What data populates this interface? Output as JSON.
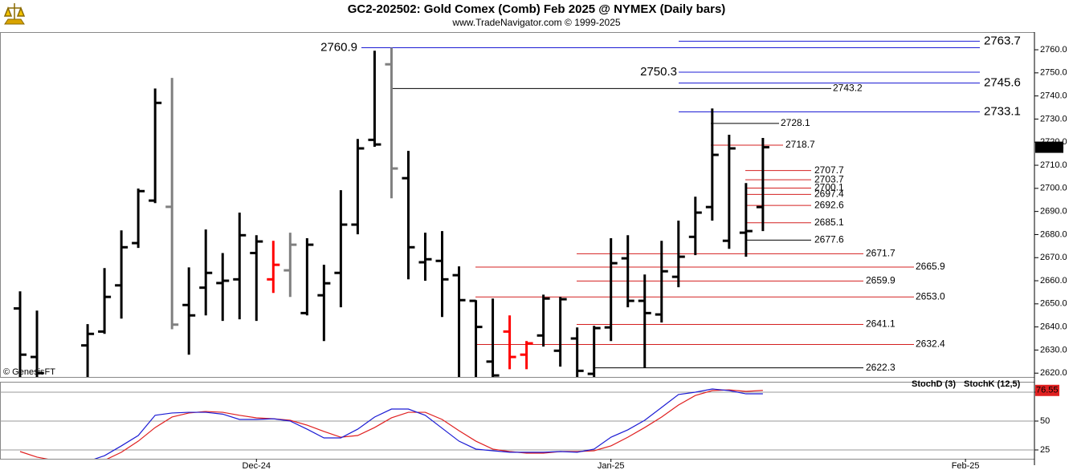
{
  "chart_data": {
    "type": "ohlc",
    "title": "GC2-202502:  Gold Comex (Comb) Feb 2025 @ NYMEX  (Daily bars)",
    "subtitle": "www.TradeNavigator.com © 1999-2025",
    "annotation": "© GenesisFT",
    "categories": [
      null,
      null,
      null,
      null,
      null,
      null,
      null,
      null,
      null,
      null,
      null,
      null,
      null,
      null,
      "Dec-24",
      null,
      null,
      null,
      null,
      null,
      null,
      null,
      null,
      null,
      null,
      null,
      null,
      null,
      null,
      null,
      null,
      null,
      null,
      null,
      null,
      "Jan-25",
      null,
      null,
      null,
      null,
      null,
      null,
      null,
      null,
      null,
      null,
      null,
      null,
      null,
      null,
      null,
      null,
      null,
      null,
      null,
      null,
      "Feb-25",
      null,
      null,
      null
    ],
    "open": [
      2648,
      2627,
      null,
      null,
      2632,
      2638,
      2658,
      2676.3,
      2694.7,
      2692,
      2649.5,
      2657,
      2659,
      2660.6,
      2672,
      2660.6,
      2664.5,
      2646,
      2653.7,
      2663.4,
      2684.3,
      2721,
      2753.7,
      2704.4,
      2668,
      2668.6,
      2662.4,
      2651.3,
      2625,
      2638,
      2628,
      2636.3,
      2629.7,
      2635,
      2619.7,
      2639.8,
      2669.7,
      2651.3,
      2645.4,
      2661.7,
      2679,
      2691.9,
      2677.3,
      2680.8,
      2691.9,
      null,
      null,
      null,
      null,
      null,
      null,
      null,
      null,
      null,
      null,
      null,
      null,
      null,
      null,
      null
    ],
    "high": [
      2655.4,
      2647.1,
      null,
      null,
      2641.2,
      2665.5,
      2681.8,
      2699.9,
      2743.2,
      2747.8,
      2665.8,
      2682.2,
      2672,
      2689.5,
      2679.7,
      2677.3,
      2680.8,
      2678.4,
      2666.9,
      2699.2,
      2721.4,
      2759.6,
      2760.9,
      2716.2,
      2680.8,
      2681.5,
      2666.2,
      2651.6,
      2652.3,
      2645,
      2633.9,
      2654,
      2653,
      2639.8,
      2640.5,
      2678.4,
      2679.7,
      2662.7,
      2677.3,
      2686,
      2696.4,
      2734.6,
      2723.2,
      2702.3,
      2721.8,
      null,
      null,
      null,
      null,
      null,
      null,
      null,
      null,
      null,
      null,
      null,
      null,
      null,
      null,
      null
    ],
    "low": [
      2610,
      2612,
      null,
      null,
      2614,
      2637,
      2643.6,
      2674.2,
      2693.6,
      2639,
      2628,
      2645,
      2642.6,
      2643.3,
      2642.6,
      2654.7,
      2653,
      2645,
      2633.9,
      2648.5,
      2680.1,
      2718,
      2695.7,
      2660.6,
      2660,
      2644.3,
      2615,
      2615,
      2615,
      2621.7,
      2621.7,
      2631.5,
      2622.8,
      2615,
      2615,
      2633.9,
      2648.5,
      2622.4,
      2641.9,
      2657.2,
      2671.1,
      2686,
      2673.8,
      2670.4,
      2681.5,
      null,
      null,
      null,
      null,
      null,
      null,
      null,
      null,
      null,
      null,
      null,
      null,
      null,
      null,
      null
    ],
    "close": [
      2628,
      2620,
      null,
      null,
      2637,
      2653,
      2674.5,
      2698.8,
      2737,
      2641,
      2645,
      2663.4,
      2660,
      2679.7,
      2677,
      2666.9,
      2675.6,
      2675.6,
      2658.9,
      2684.3,
      2717.3,
      2719,
      2708.6,
      2674.5,
      2669.3,
      2660.6,
      2651.6,
      2640,
      2619,
      2627,
      2632.9,
      2652.3,
      2652,
      2621,
      2639.5,
      2667.6,
      2651.3,
      2646,
      2664.1,
      2670.4,
      2689.5,
      2714.5,
      2717.3,
      2681.5,
      2717.8,
      null,
      null,
      null,
      null,
      null,
      null,
      null,
      null,
      null,
      null,
      null,
      null,
      null,
      null,
      null
    ],
    "bar_colors": [
      "#000000",
      "#000000",
      "#000000",
      "#000000",
      "#000000",
      "#000000",
      "#000000",
      "#000000",
      "#000000",
      "#808080",
      "#000000",
      "#000000",
      "#000000",
      "#000000",
      "#000000",
      "#ff0000",
      "#808080",
      "#000000",
      "#000000",
      "#000000",
      "#000000",
      "#000000",
      "#808080",
      "#000000",
      "#000000",
      "#000000",
      "#000000",
      "#000000",
      "#000000",
      "#ff0000",
      "#ff0000",
      "#000000",
      "#000000",
      "#000000",
      "#000000",
      "#000000",
      "#000000",
      "#000000",
      "#000000",
      "#000000",
      "#000000",
      "#000000",
      "#000000",
      "#000000",
      "#000000",
      null,
      null,
      null,
      null,
      null,
      null,
      null,
      null,
      null,
      null,
      null,
      null,
      null,
      null,
      null
    ],
    "ylim": [
      2618,
      2768
    ],
    "yticks": [
      {
        "value": 2620,
        "label": "2620.0"
      },
      {
        "value": 2630,
        "label": "2630.0"
      },
      {
        "value": 2640,
        "label": "2640.0"
      },
      {
        "value": 2650,
        "label": "2650.0"
      },
      {
        "value": 2660,
        "label": "2660.0"
      },
      {
        "value": 2670,
        "label": "2670.0"
      },
      {
        "value": 2680,
        "label": "2680.0"
      },
      {
        "value": 2690,
        "label": "2690.0"
      },
      {
        "value": 2700,
        "label": "2700.0"
      },
      {
        "value": 2710,
        "label": "2710.0"
      },
      {
        "value": 2720,
        "label": "2720.0"
      },
      {
        "value": 2730,
        "label": "2730.0"
      },
      {
        "value": 2740,
        "label": "2740.0"
      },
      {
        "value": 2750,
        "label": "2750.0"
      },
      {
        "value": 2760,
        "label": "2760.0"
      }
    ],
    "levels": [
      {
        "value": 2763.7,
        "color": "#1c1cd4"
      },
      {
        "value": 2760.9,
        "color": "#1c1cd4"
      },
      {
        "value": 2750.3,
        "color": "#1c1cd4"
      },
      {
        "value": 2745.6,
        "color": "#1c1cd4"
      },
      {
        "value": 2743.2,
        "color": "#000000"
      },
      {
        "value": 2733.1,
        "color": "#1c1cd4"
      },
      {
        "value": 2728.1,
        "color": "#000000"
      },
      {
        "value": 2718.7,
        "color": "#d42020"
      },
      {
        "value": 2707.7,
        "color": "#d42020"
      },
      {
        "value": 2703.7,
        "color": "#d42020"
      },
      {
        "value": 2700.1,
        "color": "#d42020"
      },
      {
        "value": 2697.4,
        "color": "#d42020"
      },
      {
        "value": 2692.6,
        "color": "#d42020"
      },
      {
        "value": 2685.1,
        "color": "#d42020"
      },
      {
        "value": 2677.6,
        "color": "#000000"
      },
      {
        "value": 2671.7,
        "color": "#d42020"
      },
      {
        "value": 2665.9,
        "color": "#d42020"
      },
      {
        "value": 2659.9,
        "color": "#d42020"
      },
      {
        "value": 2653,
        "label": "2653.0",
        "color": "#d42020"
      },
      {
        "value": 2641.1,
        "color": "#d42020"
      },
      {
        "value": 2632.4,
        "color": "#d42020"
      },
      {
        "value": 2622.3,
        "color": "#000000"
      }
    ],
    "indicator": {
      "type": "line",
      "series": [
        {
          "name": "StochD (3)",
          "color": "#e02020",
          "values": [
            23.6,
            18.8,
            16,
            15,
            15,
            16,
            23,
            32.6,
            44.4,
            53.5,
            57,
            58.3,
            57.6,
            55,
            52.8,
            52,
            50.7,
            46.5,
            41,
            36,
            37.5,
            44.4,
            52.8,
            57.6,
            57.6,
            51.4,
            41.7,
            32.6,
            25.7,
            23.6,
            22.2,
            22.2,
            23.6,
            23.6,
            24.3,
            28.5,
            36,
            44.4,
            53.5,
            63.9,
            72.2,
            76.4,
            77,
            75.7,
            76.55,
            null,
            null,
            null,
            null,
            null,
            null,
            null,
            null,
            null,
            null,
            null,
            null,
            null,
            null,
            null
          ]
        },
        {
          "name": "StochK (12,5)",
          "color": "#1c1cd4",
          "values": [
            17,
            15,
            15,
            15,
            15,
            20,
            28.5,
            37.5,
            55,
            57,
            57.6,
            57.6,
            56,
            51.4,
            51.4,
            52,
            50,
            43,
            35.4,
            35.4,
            43,
            53.5,
            60.4,
            60.4,
            55,
            43.8,
            32.6,
            25.7,
            24.3,
            23,
            23,
            23,
            23.6,
            23,
            25.7,
            36,
            42.4,
            50.7,
            61.8,
            73,
            75,
            77.8,
            76.4,
            73.6,
            73.6,
            null,
            null,
            null,
            null,
            null,
            null,
            null,
            null,
            null,
            null,
            null,
            null,
            null,
            null,
            null
          ]
        }
      ],
      "ylim": [
        17,
        83
      ],
      "yticks": [
        25,
        50,
        75
      ]
    }
  }
}
